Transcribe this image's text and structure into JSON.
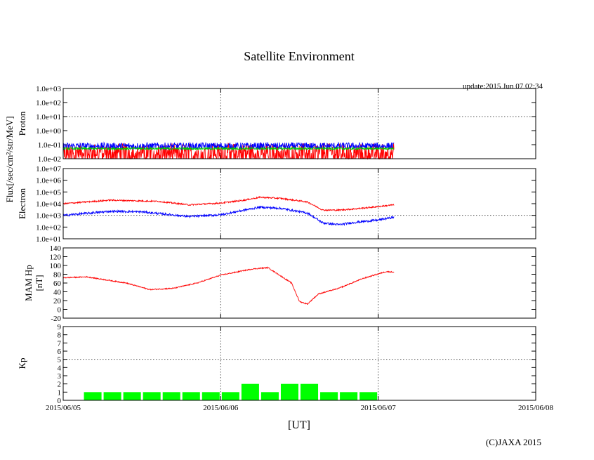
{
  "chart_data": {
    "type": "line",
    "title": "Satellite Environment",
    "update_text": "update:2015 Jun 07 02:34",
    "shared_ylabel": "Flux[/sec/cm²/str/MeV]",
    "xlabel": "[UT]",
    "credit": "(C)JAXA 2015",
    "x_ticks": [
      "2015/06/05",
      "2015/06/06",
      "2015/06/07",
      "2015/06/08"
    ],
    "xlim_days": [
      0,
      3
    ],
    "data_end_day": 2.1,
    "panels": [
      {
        "id": "proton",
        "ylabel": "Proton",
        "scale": "log",
        "ylim_exp": [
          -2,
          3
        ],
        "y_tick_labels": [
          "1.0e-02",
          "1.0e-01",
          "1.0e+00",
          "1.0e+01",
          "1.0e+02",
          "1.0e+03"
        ],
        "grid_exp": [
          1
        ],
        "series": [
          {
            "name": "proton-red",
            "color": "#ff0000",
            "level_exp": -1.5,
            "noise_exp": 0.6,
            "spiky": true
          },
          {
            "name": "proton-blue",
            "color": "#0000ff",
            "level_exp": -1.1,
            "noise_exp": 0.25
          },
          {
            "name": "proton-green",
            "color": "#00cc00",
            "level_exp": -1.28,
            "noise_exp": 0.08
          }
        ]
      },
      {
        "id": "electron",
        "ylabel": "Electron",
        "scale": "log",
        "ylim_exp": [
          1,
          7
        ],
        "y_tick_labels": [
          "1.0e+01",
          "1.0e+02",
          "1.0e+03",
          "1.0e+04",
          "1.0e+05",
          "1.0e+06",
          "1.0e+07"
        ],
        "grid_exp": [
          3
        ],
        "series": [
          {
            "name": "electron-red",
            "color": "#ff0000",
            "noise_exp": 0.06,
            "t": [
              0,
              0.3,
              0.6,
              0.8,
              1.0,
              1.15,
              1.25,
              1.38,
              1.55,
              1.65,
              1.75,
              1.85,
              2.0,
              2.1
            ],
            "v_exp": [
              4.0,
              4.3,
              4.2,
              3.9,
              4.05,
              4.3,
              4.55,
              4.45,
              4.15,
              3.45,
              3.45,
              3.55,
              3.75,
              3.9
            ]
          },
          {
            "name": "electron-blue",
            "color": "#0000ff",
            "noise_exp": 0.09,
            "t": [
              0,
              0.3,
              0.5,
              0.8,
              1.0,
              1.15,
              1.25,
              1.38,
              1.55,
              1.65,
              1.75,
              1.85,
              2.0,
              2.1
            ],
            "v_exp": [
              3.0,
              3.35,
              3.3,
              2.9,
              3.05,
              3.45,
              3.7,
              3.6,
              3.2,
              2.35,
              2.2,
              2.4,
              2.6,
              2.85
            ]
          }
        ]
      },
      {
        "id": "mam-hp",
        "ylabel": "MAM Hp",
        "unit": "[nT]",
        "scale": "linear",
        "ylim": [
          -20,
          140
        ],
        "y_ticks": [
          -20,
          0,
          20,
          40,
          60,
          80,
          100,
          120,
          140
        ],
        "grid": [],
        "series": [
          {
            "name": "hp",
            "color": "#ff0000",
            "noise": 1.2,
            "t": [
              0,
              0.15,
              0.4,
              0.55,
              0.7,
              0.85,
              1.0,
              1.1,
              1.2,
              1.3,
              1.45,
              1.5,
              1.55,
              1.62,
              1.75,
              1.9,
              2.05,
              2.1
            ],
            "v": [
              72,
              74,
              60,
              45,
              48,
              60,
              78,
              85,
              92,
              95,
              60,
              18,
              12,
              35,
              48,
              70,
              86,
              85
            ]
          }
        ]
      },
      {
        "id": "kp",
        "ylabel": "Kp",
        "scale": "linear",
        "ylim": [
          0,
          9
        ],
        "y_ticks": [
          0,
          1,
          2,
          3,
          4,
          5,
          6,
          7,
          8,
          9
        ],
        "grid": [
          5
        ],
        "bar_color": "#00ff00",
        "bars": [
          {
            "start_day": 0.125,
            "value": 1
          },
          {
            "start_day": 0.25,
            "value": 1
          },
          {
            "start_day": 0.375,
            "value": 1
          },
          {
            "start_day": 0.5,
            "value": 1
          },
          {
            "start_day": 0.625,
            "value": 1
          },
          {
            "start_day": 0.75,
            "value": 1
          },
          {
            "start_day": 0.875,
            "value": 1
          },
          {
            "start_day": 1.0,
            "value": 1
          },
          {
            "start_day": 1.125,
            "value": 2
          },
          {
            "start_day": 1.25,
            "value": 1
          },
          {
            "start_day": 1.375,
            "value": 2
          },
          {
            "start_day": 1.5,
            "value": 2
          },
          {
            "start_day": 1.625,
            "value": 1
          },
          {
            "start_day": 1.75,
            "value": 1
          },
          {
            "start_day": 1.875,
            "value": 1
          }
        ],
        "bar_width_days": 0.125
      }
    ]
  }
}
